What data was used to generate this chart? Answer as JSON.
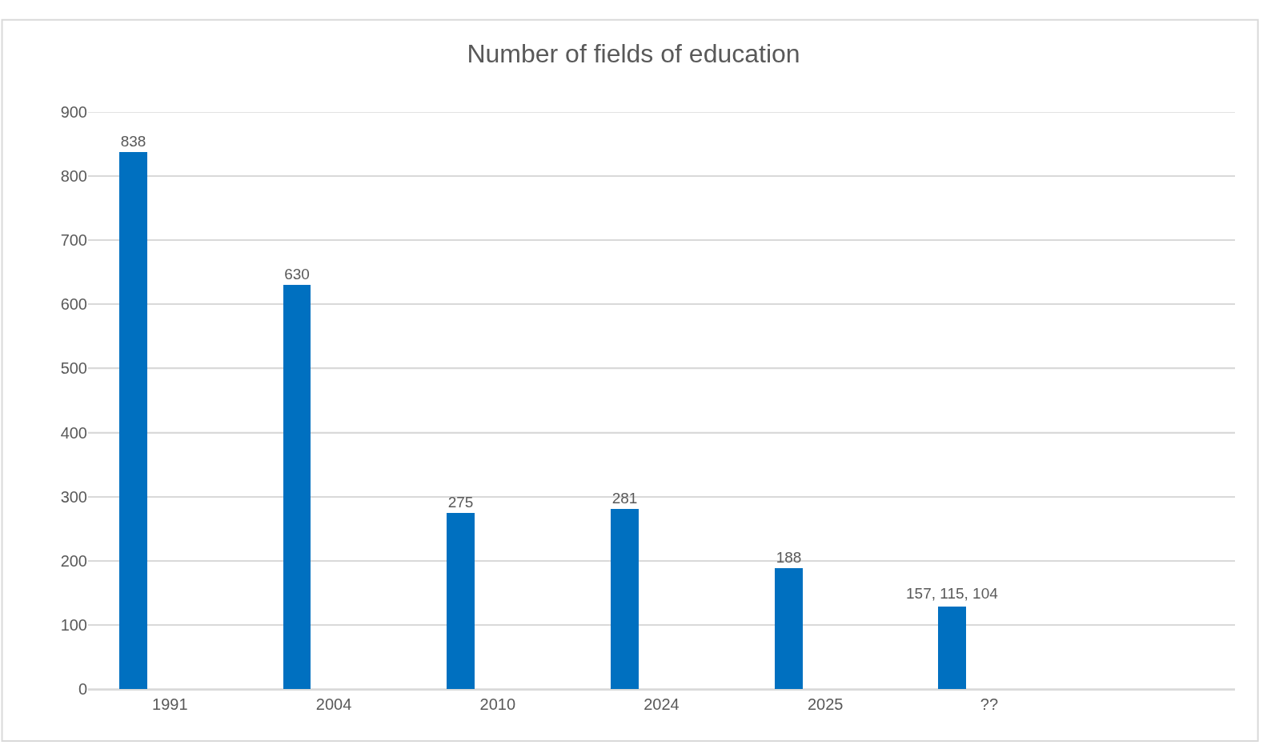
{
  "chart_data": {
    "type": "bar",
    "title": "Number of fields of education",
    "categories": [
      "1991",
      "2004",
      "2010",
      "2024",
      "2025",
      "??",
      null
    ],
    "values": [
      838,
      630,
      275,
      281,
      188,
      129,
      null
    ],
    "value_labels": [
      "838",
      "630",
      "275",
      "281",
      "188",
      null,
      null
    ],
    "annotations": [
      "157, 115, 104"
    ],
    "color": "#0070c0",
    "ylim": [
      0,
      900
    ],
    "yticks": [
      0,
      100,
      200,
      300,
      400,
      500,
      600,
      700,
      800,
      900
    ],
    "grid": "y",
    "legend": false
  }
}
